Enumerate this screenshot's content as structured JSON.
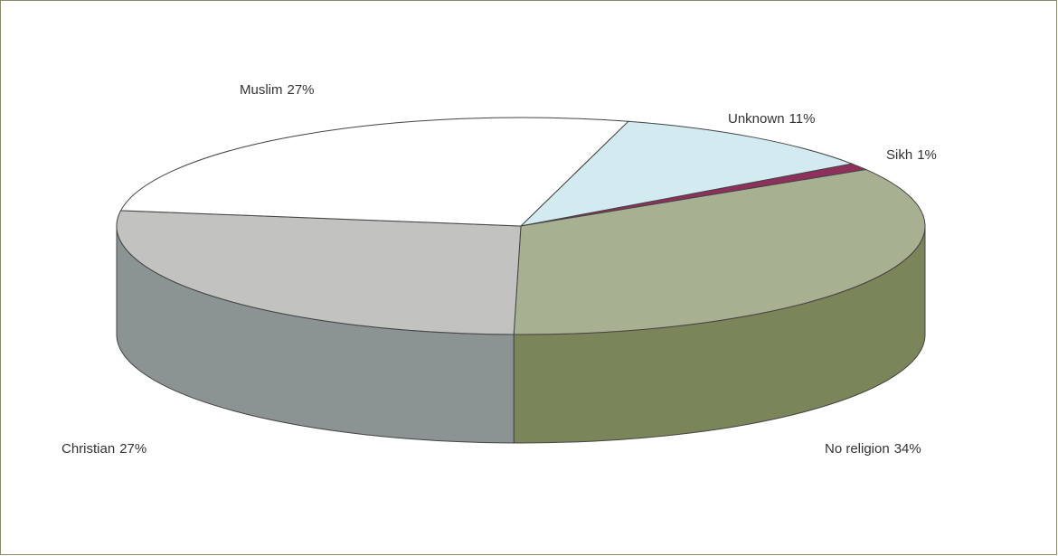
{
  "chart_data": {
    "type": "pie",
    "categories": [
      "Unknown",
      "Sikh",
      "No religion",
      "Christian",
      "Muslim"
    ],
    "values": [
      11,
      1,
      34,
      27,
      27
    ],
    "value_labels": [
      "11%",
      "1%",
      "34%",
      "27%",
      "27%"
    ],
    "colors": [
      "#d3eaf1",
      "#8e2f5c",
      "#a8b092",
      "#c2c2c0",
      "#ffffff"
    ],
    "side_colors": [
      "#a9c2c9",
      "#6a2044",
      "#7a8559",
      "#8b9393",
      "#d8d8d8"
    ]
  }
}
